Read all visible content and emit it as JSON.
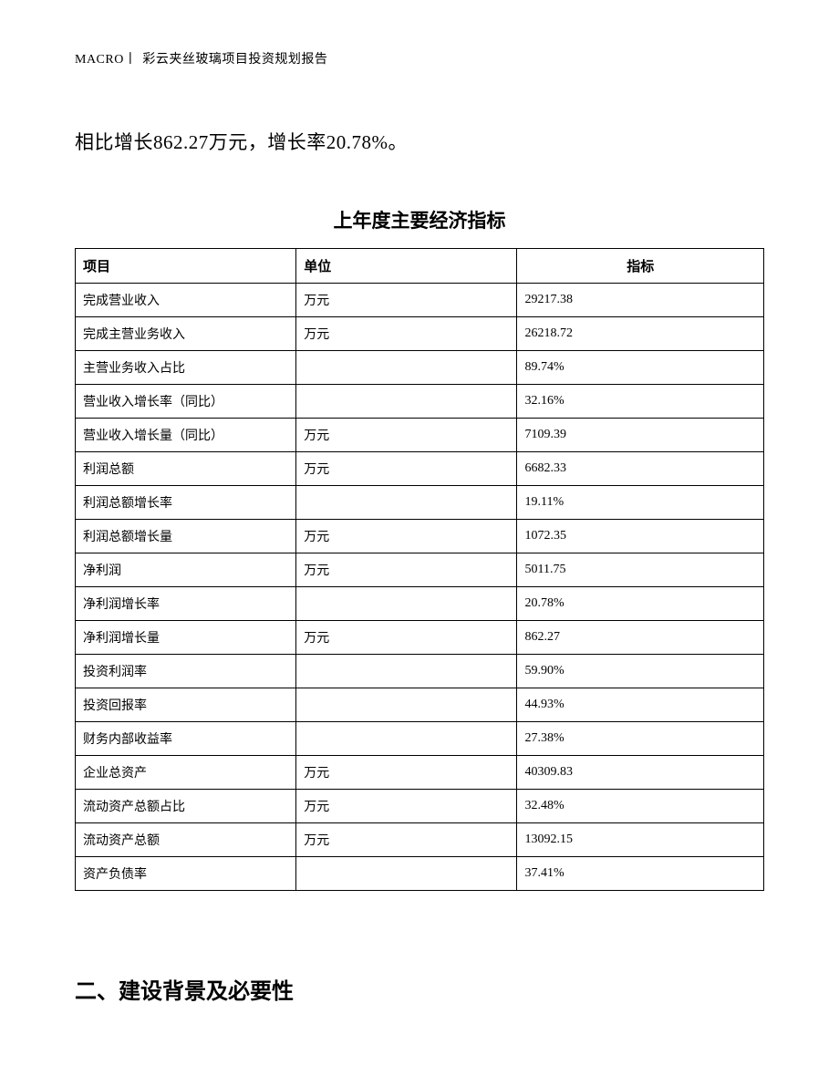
{
  "header": {
    "macro": "MACRO",
    "title": "彩云夹丝玻璃项目投资规划报告"
  },
  "body_text": "相比增长862.27万元，增长率20.78%。",
  "table": {
    "title": "上年度主要经济指标",
    "columns": [
      "项目",
      "单位",
      "指标"
    ],
    "rows": [
      [
        "完成营业收入",
        "万元",
        "29217.38"
      ],
      [
        "完成主营业务收入",
        "万元",
        "26218.72"
      ],
      [
        "主营业务收入占比",
        "",
        "89.74%"
      ],
      [
        "营业收入增长率（同比）",
        "",
        "32.16%"
      ],
      [
        "营业收入增长量（同比）",
        "万元",
        "7109.39"
      ],
      [
        "利润总额",
        "万元",
        "6682.33"
      ],
      [
        "利润总额增长率",
        "",
        "19.11%"
      ],
      [
        "利润总额增长量",
        "万元",
        "1072.35"
      ],
      [
        "净利润",
        "万元",
        "5011.75"
      ],
      [
        "净利润增长率",
        "",
        "20.78%"
      ],
      [
        "净利润增长量",
        "万元",
        "862.27"
      ],
      [
        "投资利润率",
        "",
        "59.90%"
      ],
      [
        "投资回报率",
        "",
        "44.93%"
      ],
      [
        "财务内部收益率",
        "",
        "27.38%"
      ],
      [
        "企业总资产",
        "万元",
        "40309.83"
      ],
      [
        "流动资产总额占比",
        "万元",
        "32.48%"
      ],
      [
        "流动资产总额",
        "万元",
        "13092.15"
      ],
      [
        "资产负债率",
        "",
        "37.41%"
      ]
    ]
  },
  "section_heading": "二、建设背景及必要性"
}
